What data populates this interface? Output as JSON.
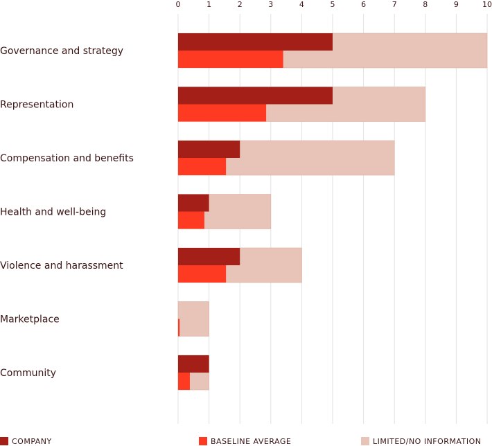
{
  "chart_data": {
    "type": "bar",
    "orientation": "horizontal",
    "grid": true,
    "legend_position": "bottom",
    "xlim": [
      0,
      10
    ],
    "x_ticks": [
      "0",
      "1",
      "2",
      "3",
      "4",
      "5",
      "6",
      "7",
      "8",
      "9",
      "10"
    ],
    "categories": [
      "Governance and strategy",
      "Representation",
      "Compensation and benefits",
      "Health and well-being",
      "Violence and harassment",
      "Marketplace",
      "Community"
    ],
    "series": [
      {
        "name": "COMPANY",
        "color": "#a31f17",
        "values": [
          5,
          5,
          2,
          1,
          2,
          0,
          1
        ]
      },
      {
        "name": "BASELINE AVERAGE",
        "color": "#ff3a22",
        "values": [
          3.4,
          2.85,
          1.55,
          0.85,
          1.55,
          0.05,
          0.38
        ]
      },
      {
        "name": "LIMITED/NO INFORMATION",
        "color": "#e8c3b7",
        "values": [
          10,
          8,
          7,
          3,
          4,
          1,
          1
        ]
      }
    ]
  }
}
